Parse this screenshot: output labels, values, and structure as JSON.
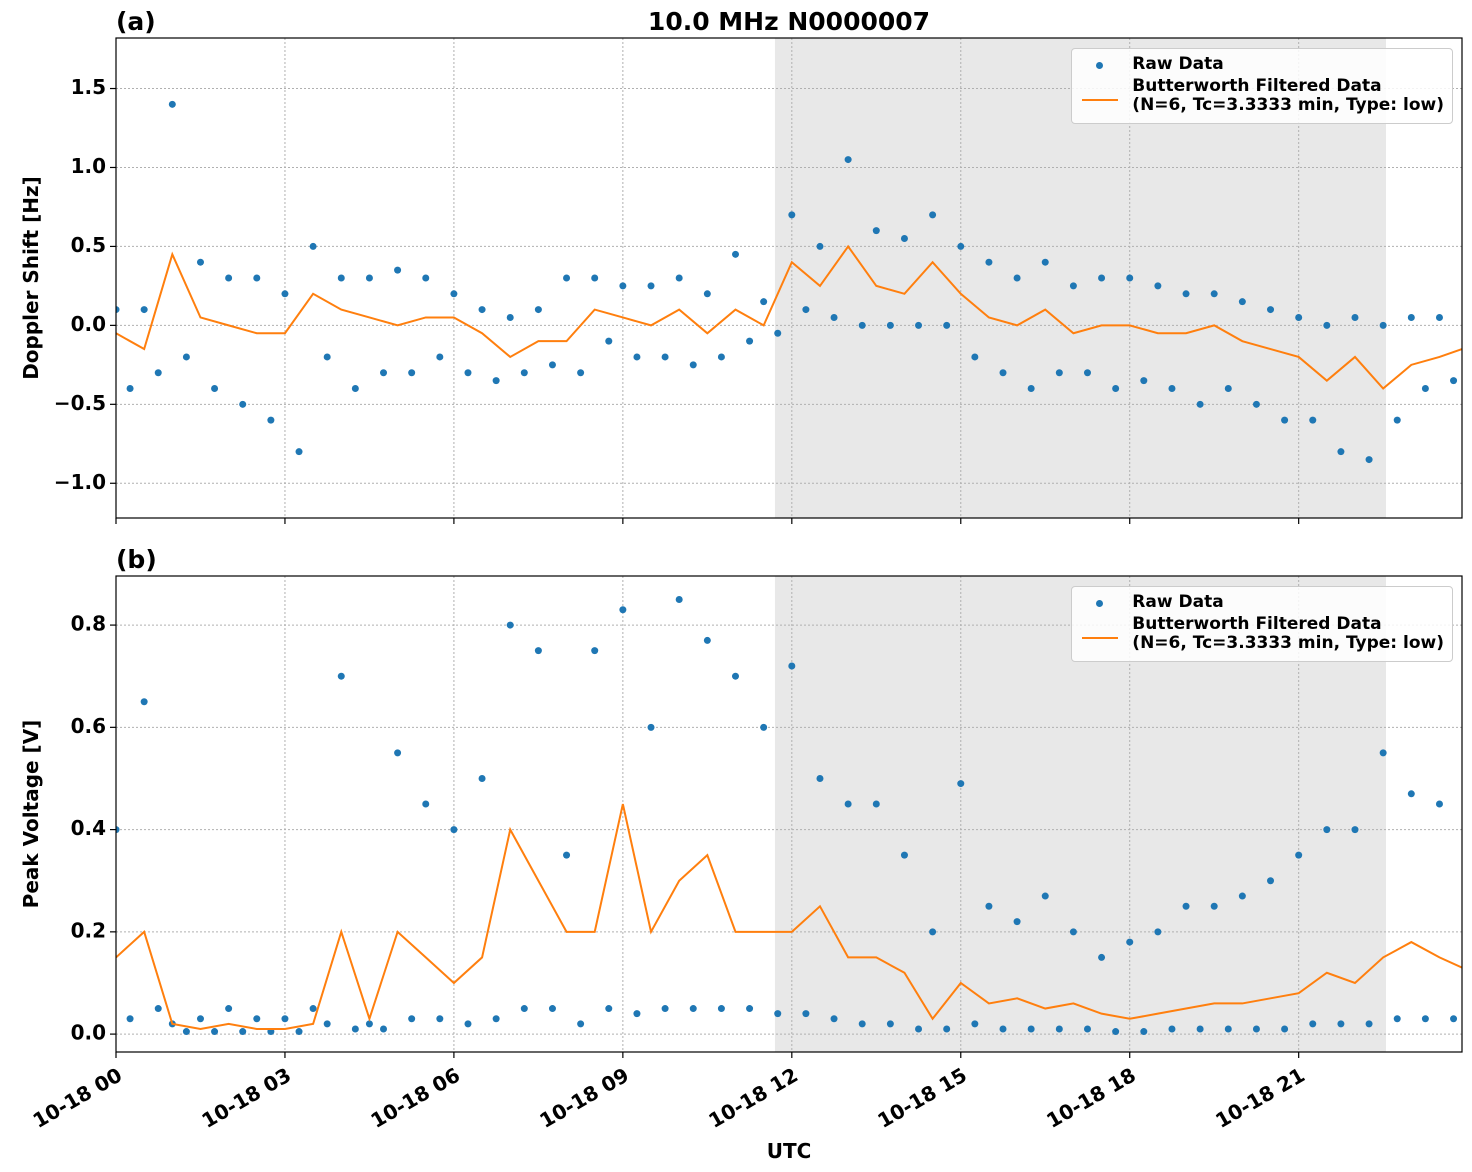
{
  "chart_data": [
    {
      "type": "scatter",
      "title": "10.0 MHz N0000007",
      "panel_label": "(a)",
      "ylabel": "Doppler Shift [Hz]",
      "xlim": [
        0,
        23.9
      ],
      "ylim": [
        -1.22,
        1.82
      ],
      "xticks": [
        0,
        3,
        6,
        9,
        12,
        15,
        18,
        21
      ],
      "show_xtick_labels": false,
      "yticks": [
        {
          "value": -1.0,
          "label": "−1.0"
        },
        {
          "value": -0.5,
          "label": "−0.5"
        },
        {
          "value": 0.0,
          "label": "0.0"
        },
        0.5,
        {
          "value": 1.0,
          "label": "1.0"
        },
        1.5
      ],
      "grid": true,
      "legend": "upper right",
      "shaded_span": [
        11.7,
        22.55
      ],
      "shade_color": "#e8e8e8",
      "series": [
        {
          "name": "Raw Data",
          "type": "scatter",
          "color": "#1f77b4",
          "x": [
            0,
            0.25,
            0.5,
            0.75,
            1,
            1.25,
            1.5,
            1.75,
            2,
            2.25,
            2.5,
            2.75,
            3,
            3.25,
            3.5,
            3.75,
            4,
            4.25,
            4.5,
            4.75,
            5,
            5.25,
            5.5,
            5.75,
            6,
            6.25,
            6.5,
            6.75,
            7,
            7.25,
            7.5,
            7.75,
            8,
            8.25,
            8.5,
            8.75,
            9,
            9.25,
            9.5,
            9.75,
            10,
            10.25,
            10.5,
            10.75,
            11,
            11.25,
            11.5,
            11.75,
            12,
            12.25,
            12.5,
            12.75,
            13,
            13.25,
            13.5,
            13.75,
            14,
            14.25,
            14.5,
            14.75,
            15,
            15.25,
            15.5,
            15.75,
            16,
            16.25,
            16.5,
            16.75,
            17,
            17.25,
            17.5,
            17.75,
            18,
            18.25,
            18.5,
            18.75,
            19,
            19.25,
            19.5,
            19.75,
            20,
            20.25,
            20.5,
            20.75,
            21,
            21.25,
            21.5,
            21.75,
            22,
            22.25,
            22.5,
            22.75,
            23,
            23.25,
            23.5,
            23.75
          ],
          "values": [
            0.1,
            -0.4,
            0.1,
            -0.3,
            1.4,
            -0.2,
            0.4,
            -0.4,
            0.3,
            -0.5,
            0.3,
            -0.6,
            0.2,
            -0.8,
            0.5,
            -0.2,
            0.3,
            -0.4,
            0.3,
            -0.3,
            0.35,
            -0.3,
            0.3,
            -0.2,
            0.2,
            -0.3,
            0.1,
            -0.35,
            0.05,
            -0.3,
            0.1,
            -0.25,
            0.3,
            -0.3,
            0.3,
            -0.1,
            0.25,
            -0.2,
            0.25,
            -0.2,
            0.3,
            -0.25,
            0.2,
            -0.2,
            0.45,
            -0.1,
            0.15,
            -0.05,
            0.7,
            0.1,
            0.5,
            0.05,
            1.05,
            0.0,
            0.6,
            0.0,
            0.55,
            0.0,
            0.7,
            0.0,
            0.5,
            -0.2,
            0.4,
            -0.3,
            0.3,
            -0.4,
            0.4,
            -0.3,
            0.25,
            -0.3,
            0.3,
            -0.4,
            0.3,
            -0.35,
            0.25,
            -0.4,
            0.2,
            -0.5,
            0.2,
            -0.4,
            0.15,
            -0.5,
            0.1,
            -0.6,
            0.05,
            -0.6,
            0.0,
            -0.8,
            0.05,
            -0.85,
            0.0,
            -0.6,
            0.05,
            -0.4,
            0.05,
            -0.35
          ]
        },
        {
          "name": "Butterworth Filtered Data\n(N=6, Tc=3.3333 min, Type: low)",
          "type": "line",
          "color": "#ff7f0e",
          "x": [
            0,
            0.5,
            1,
            1.5,
            2,
            2.5,
            3,
            3.5,
            4,
            4.5,
            5,
            5.5,
            6,
            6.5,
            7,
            7.5,
            8,
            8.5,
            9,
            9.5,
            10,
            10.5,
            11,
            11.5,
            12,
            12.5,
            13,
            13.5,
            14,
            14.5,
            15,
            15.5,
            16,
            16.5,
            17,
            17.5,
            18,
            18.5,
            19,
            19.5,
            20,
            20.5,
            21,
            21.5,
            22,
            22.5,
            23,
            23.5,
            23.9
          ],
          "values": [
            -0.05,
            -0.15,
            0.45,
            0.05,
            0.0,
            -0.05,
            -0.05,
            0.2,
            0.1,
            0.05,
            0.0,
            0.05,
            0.05,
            -0.05,
            -0.2,
            -0.1,
            -0.1,
            0.1,
            0.05,
            0.0,
            0.1,
            -0.05,
            0.1,
            0.0,
            0.4,
            0.25,
            0.5,
            0.25,
            0.2,
            0.4,
            0.2,
            0.05,
            0.0,
            0.1,
            -0.05,
            0.0,
            0.0,
            -0.05,
            -0.05,
            0.0,
            -0.1,
            -0.15,
            -0.2,
            -0.35,
            -0.2,
            -0.4,
            -0.25,
            -0.2,
            -0.15
          ]
        }
      ]
    },
    {
      "type": "scatter",
      "panel_label": "(b)",
      "ylabel": "Peak Voltage [V]",
      "xlabel": "UTC",
      "xlim": [
        0,
        23.9
      ],
      "ylim": [
        -0.035,
        0.896
      ],
      "xticks": [
        {
          "value": 0,
          "label": "10-18 00"
        },
        {
          "value": 3,
          "label": "10-18 03"
        },
        {
          "value": 6,
          "label": "10-18 06"
        },
        {
          "value": 9,
          "label": "10-18 09"
        },
        {
          "value": 12,
          "label": "10-18 12"
        },
        {
          "value": 15,
          "label": "10-18 15"
        },
        {
          "value": 18,
          "label": "10-18 18"
        },
        {
          "value": 21,
          "label": "10-18 21"
        }
      ],
      "show_xtick_labels": true,
      "yticks": [
        {
          "value": 0.0,
          "label": "0.0"
        },
        0.2,
        0.4,
        0.6,
        0.8
      ],
      "grid": true,
      "legend": "upper right",
      "shaded_span": [
        11.7,
        22.55
      ],
      "shade_color": "#e8e8e8",
      "series": [
        {
          "name": "Raw Data",
          "type": "scatter",
          "color": "#1f77b4",
          "x": [
            0,
            0.25,
            0.5,
            0.75,
            1,
            1.25,
            1.5,
            1.75,
            2,
            2.25,
            2.5,
            2.75,
            3,
            3.25,
            3.5,
            3.75,
            4,
            4.25,
            4.5,
            4.75,
            5,
            5.25,
            5.5,
            5.75,
            6,
            6.25,
            6.5,
            6.75,
            7,
            7.25,
            7.5,
            7.75,
            8,
            8.25,
            8.5,
            8.75,
            9,
            9.25,
            9.5,
            9.75,
            10,
            10.25,
            10.5,
            10.75,
            11,
            11.25,
            11.5,
            11.75,
            12,
            12.25,
            12.5,
            12.75,
            13,
            13.25,
            13.5,
            13.75,
            14,
            14.25,
            14.5,
            14.75,
            15,
            15.25,
            15.5,
            15.75,
            16,
            16.25,
            16.5,
            16.75,
            17,
            17.25,
            17.5,
            17.75,
            18,
            18.25,
            18.5,
            18.75,
            19,
            19.25,
            19.5,
            19.75,
            20,
            20.25,
            20.5,
            20.75,
            21,
            21.25,
            21.5,
            21.75,
            22,
            22.25,
            22.5,
            22.75,
            23,
            23.25,
            23.5,
            23.75
          ],
          "values": [
            0.4,
            0.03,
            0.65,
            0.05,
            0.02,
            0.005,
            0.03,
            0.005,
            0.05,
            0.005,
            0.03,
            0.005,
            0.03,
            0.005,
            0.05,
            0.02,
            0.7,
            0.01,
            0.02,
            0.01,
            0.55,
            0.03,
            0.45,
            0.03,
            0.4,
            0.02,
            0.5,
            0.03,
            0.8,
            0.05,
            0.75,
            0.05,
            0.35,
            0.02,
            0.75,
            0.05,
            0.83,
            0.04,
            0.6,
            0.05,
            0.85,
            0.05,
            0.77,
            0.05,
            0.7,
            0.05,
            0.6,
            0.04,
            0.72,
            0.04,
            0.5,
            0.03,
            0.45,
            0.02,
            0.45,
            0.02,
            0.35,
            0.01,
            0.2,
            0.01,
            0.49,
            0.02,
            0.25,
            0.01,
            0.22,
            0.01,
            0.27,
            0.01,
            0.2,
            0.01,
            0.15,
            0.005,
            0.18,
            0.005,
            0.2,
            0.01,
            0.25,
            0.01,
            0.25,
            0.01,
            0.27,
            0.01,
            0.3,
            0.01,
            0.35,
            0.02,
            0.4,
            0.02,
            0.4,
            0.02,
            0.55,
            0.03,
            0.47,
            0.03,
            0.45,
            0.03
          ]
        },
        {
          "name": "Butterworth Filtered Data\n(N=6, Tc=3.3333 min, Type: low)",
          "type": "line",
          "color": "#ff7f0e",
          "x": [
            0,
            0.5,
            1,
            1.5,
            2,
            2.5,
            3,
            3.5,
            4,
            4.5,
            5,
            5.5,
            6,
            6.5,
            7,
            7.5,
            8,
            8.5,
            9,
            9.5,
            10,
            10.5,
            11,
            11.5,
            12,
            12.5,
            13,
            13.5,
            14,
            14.5,
            15,
            15.5,
            16,
            16.5,
            17,
            17.5,
            18,
            18.5,
            19,
            19.5,
            20,
            20.5,
            21,
            21.5,
            22,
            22.5,
            23,
            23.5,
            23.9
          ],
          "values": [
            0.15,
            0.2,
            0.02,
            0.01,
            0.02,
            0.01,
            0.01,
            0.02,
            0.2,
            0.03,
            0.2,
            0.15,
            0.1,
            0.15,
            0.4,
            0.3,
            0.2,
            0.2,
            0.45,
            0.2,
            0.3,
            0.35,
            0.2,
            0.2,
            0.2,
            0.25,
            0.15,
            0.15,
            0.12,
            0.03,
            0.1,
            0.06,
            0.07,
            0.05,
            0.06,
            0.04,
            0.03,
            0.04,
            0.05,
            0.06,
            0.06,
            0.07,
            0.08,
            0.12,
            0.1,
            0.15,
            0.18,
            0.15,
            0.13
          ]
        }
      ]
    }
  ]
}
